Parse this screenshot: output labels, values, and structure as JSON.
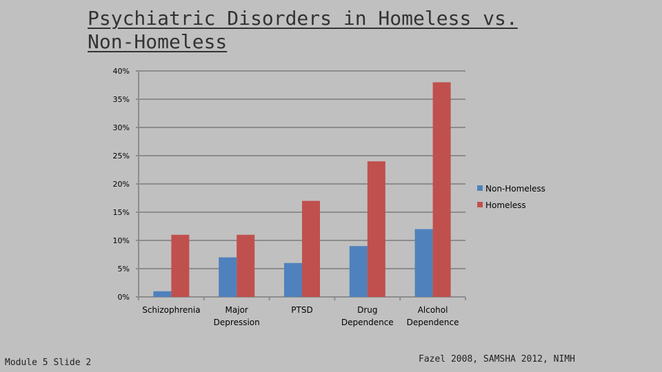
{
  "slide": {
    "title_line1": "Psychiatric Disorders in Homeless vs.",
    "title_line2": "Non-Homeless",
    "footer_left": "Module 5 Slide 2",
    "footer_right": "Fazel 2008, SAMSHA 2012, NIMH"
  },
  "colors": {
    "background": "#c0c0c0",
    "grid": "#8c8c8c",
    "non_homeless": "#4f81bd",
    "homeless": "#c0504d"
  },
  "chart_data": {
    "type": "bar",
    "title": "",
    "xlabel": "",
    "ylabel": "",
    "categories": [
      [
        "Schizophrenia"
      ],
      [
        "Major",
        "Depression"
      ],
      [
        "PTSD"
      ],
      [
        "Drug",
        "Dependence"
      ],
      [
        "Alcohol",
        "Dependence"
      ]
    ],
    "series": [
      {
        "name": "Non-Homeless",
        "values": [
          1,
          7,
          6,
          9,
          12
        ]
      },
      {
        "name": "Homeless",
        "values": [
          11,
          11,
          17,
          24,
          38
        ]
      }
    ],
    "ylim": [
      0,
      40
    ],
    "yticks": [
      0,
      5,
      10,
      15,
      20,
      25,
      30,
      35,
      40
    ],
    "ytick_suffix": "%",
    "grid": true,
    "legend_position": "right"
  }
}
